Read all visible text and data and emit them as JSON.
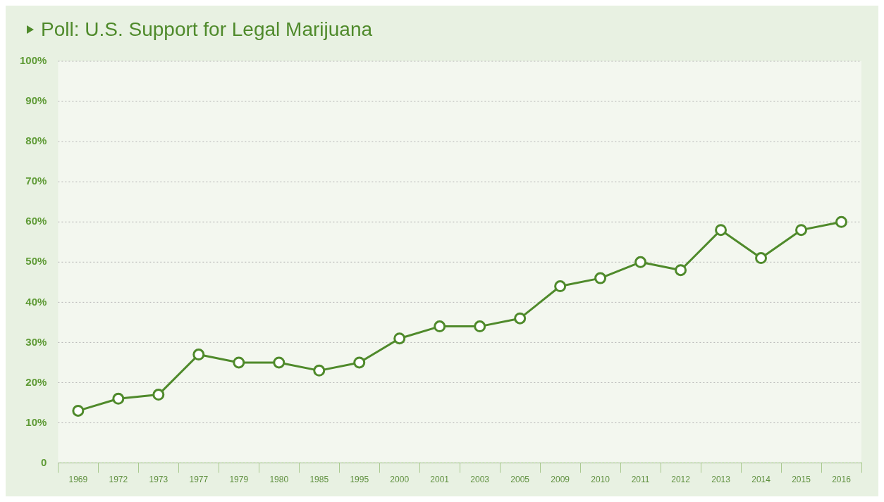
{
  "chart_data": {
    "type": "line",
    "title": "Poll: U.S. Support for Legal Marijuana",
    "categories": [
      "1969",
      "1972",
      "1973",
      "1977",
      "1979",
      "1980",
      "1985",
      "1995",
      "2000",
      "2001",
      "2003",
      "2005",
      "2009",
      "2010",
      "2011",
      "2012",
      "2013",
      "2014",
      "2015",
      "2016"
    ],
    "series": [
      {
        "color": "#4f8a2b",
        "values": [
          13,
          16,
          17,
          27,
          25,
          25,
          23,
          25,
          31,
          34,
          34,
          36,
          44,
          46,
          50,
          48,
          58,
          51,
          58,
          60
        ]
      }
    ],
    "ylim": [
      0,
      100
    ],
    "yticks": [
      0,
      {
        "value": 10,
        "label": "10%"
      },
      {
        "value": 20,
        "label": "20%"
      },
      {
        "value": 30,
        "label": "30%"
      },
      {
        "value": 40,
        "label": "40%"
      },
      {
        "value": 50,
        "label": "50%"
      },
      {
        "value": 60,
        "label": "60%"
      },
      {
        "value": 70,
        "label": "70%"
      },
      {
        "value": 80,
        "label": "80%"
      },
      {
        "value": 90,
        "label": "90%"
      },
      {
        "value": 100,
        "label": "100%"
      }
    ],
    "grid": "y",
    "legend": false,
    "marker": "circle",
    "line_style": "solid"
  }
}
